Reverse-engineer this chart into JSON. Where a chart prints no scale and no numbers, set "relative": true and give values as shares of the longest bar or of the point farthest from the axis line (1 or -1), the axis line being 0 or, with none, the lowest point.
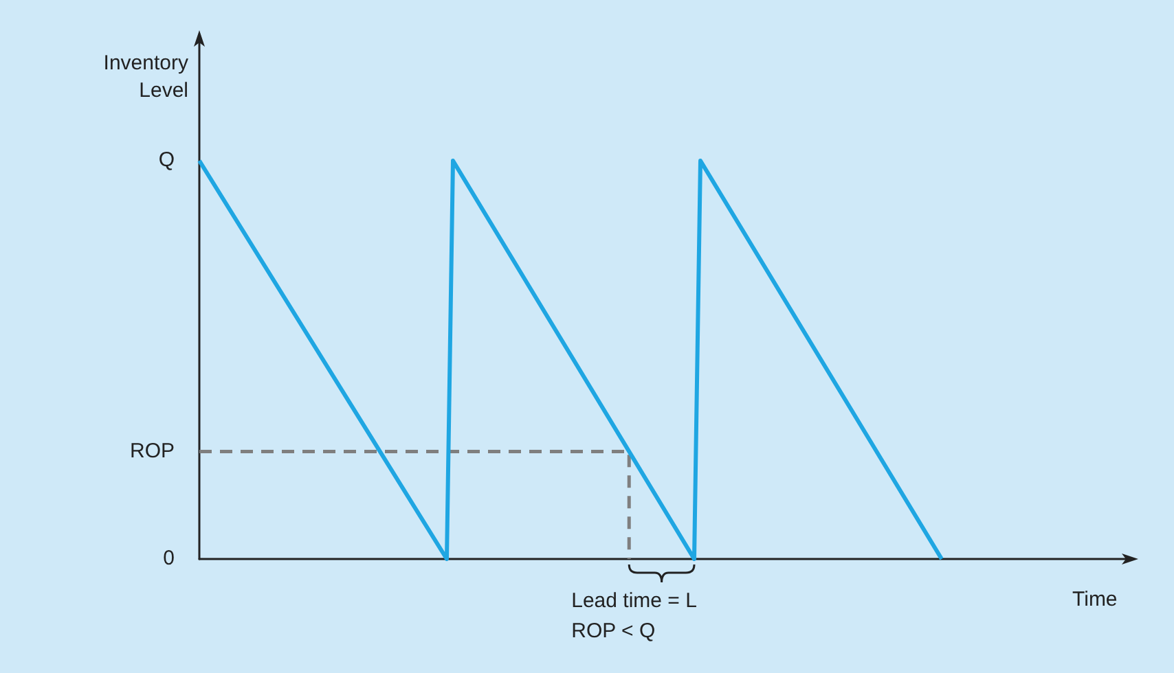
{
  "chart_data": {
    "type": "line",
    "xlabel": "Time",
    "ylabel": "Inventory\nLevel",
    "relative": true,
    "categories": [
      null,
      null,
      null,
      null,
      null,
      null,
      null,
      null,
      null,
      null,
      null,
      null,
      null,
      null,
      null,
      null,
      null,
      null,
      null,
      null,
      null,
      null,
      null,
      null,
      null,
      null,
      null,
      null,
      null,
      null,
      null,
      null,
      null,
      null,
      null,
      null,
      null,
      null,
      null,
      null,
      null,
      null,
      null,
      null,
      null,
      null,
      null,
      null,
      null,
      null,
      null,
      null,
      null,
      null,
      null,
      null,
      null,
      null,
      null,
      null,
      null,
      null,
      null,
      null,
      null,
      null,
      null,
      null,
      null,
      null,
      null,
      null,
      null,
      null,
      null,
      null,
      null,
      null,
      null,
      null,
      null,
      null,
      null,
      null,
      null,
      null,
      null,
      null,
      null,
      null,
      null,
      null,
      null,
      null,
      null,
      null,
      null,
      null,
      null,
      null,
      null,
      null,
      null,
      null,
      null,
      null,
      null,
      null,
      null,
      null,
      null,
      null,
      null,
      null,
      null,
      null,
      null,
      null,
      null,
      null,
      null,
      null,
      null,
      null,
      null,
      null,
      null,
      null,
      null,
      null,
      null,
      null,
      null,
      null,
      null,
      null,
      null,
      null,
      null,
      null,
      null,
      null,
      null,
      null,
      null,
      null,
      null,
      null,
      null,
      null,
      null
    ],
    "series": [
      {
        "color": "#1fa6e2",
        "values": [
          1,
          null,
          null,
          null,
          null,
          null,
          null,
          null,
          null,
          null,
          null,
          null,
          null,
          null,
          null,
          null,
          null,
          null,
          null,
          null,
          null,
          null,
          null,
          null,
          null,
          null,
          null,
          null,
          null,
          null,
          null,
          null,
          null,
          null,
          null,
          null,
          null,
          null,
          null,
          null,
          0,
          1,
          null,
          null,
          null,
          null,
          null,
          null,
          null,
          null,
          null,
          null,
          null,
          null,
          null,
          null,
          null,
          null,
          null,
          null,
          null,
          null,
          null,
          null,
          null,
          null,
          null,
          null,
          null,
          null,
          null,
          null,
          null,
          null,
          null,
          null,
          null,
          null,
          null,
          null,
          0,
          1,
          null,
          null,
          null,
          null,
          null,
          null,
          null,
          null,
          null,
          null,
          null,
          null,
          null,
          null,
          null,
          null,
          null,
          null,
          null,
          null,
          null,
          null,
          null,
          null,
          null,
          null,
          null,
          null,
          null,
          null,
          null,
          null,
          null,
          null,
          null,
          null,
          null,
          null,
          0,
          null,
          null,
          null,
          null,
          null,
          null,
          null,
          null,
          null,
          null,
          null,
          null,
          null,
          null,
          null,
          null,
          null,
          null,
          null,
          null,
          null,
          null,
          null,
          null,
          null,
          null,
          null,
          null,
          null,
          null
        ]
      }
    ],
    "ref_lines": [
      {
        "axis": "y",
        "value": 0.27,
        "label": "ROP",
        "color": "#7f7f7f",
        "line_style": "dashed"
      }
    ],
    "marker": "none",
    "line_style": "solid",
    "annotations": [
      "Q",
      "0",
      "Lead time = L",
      "ROP < Q"
    ]
  }
}
